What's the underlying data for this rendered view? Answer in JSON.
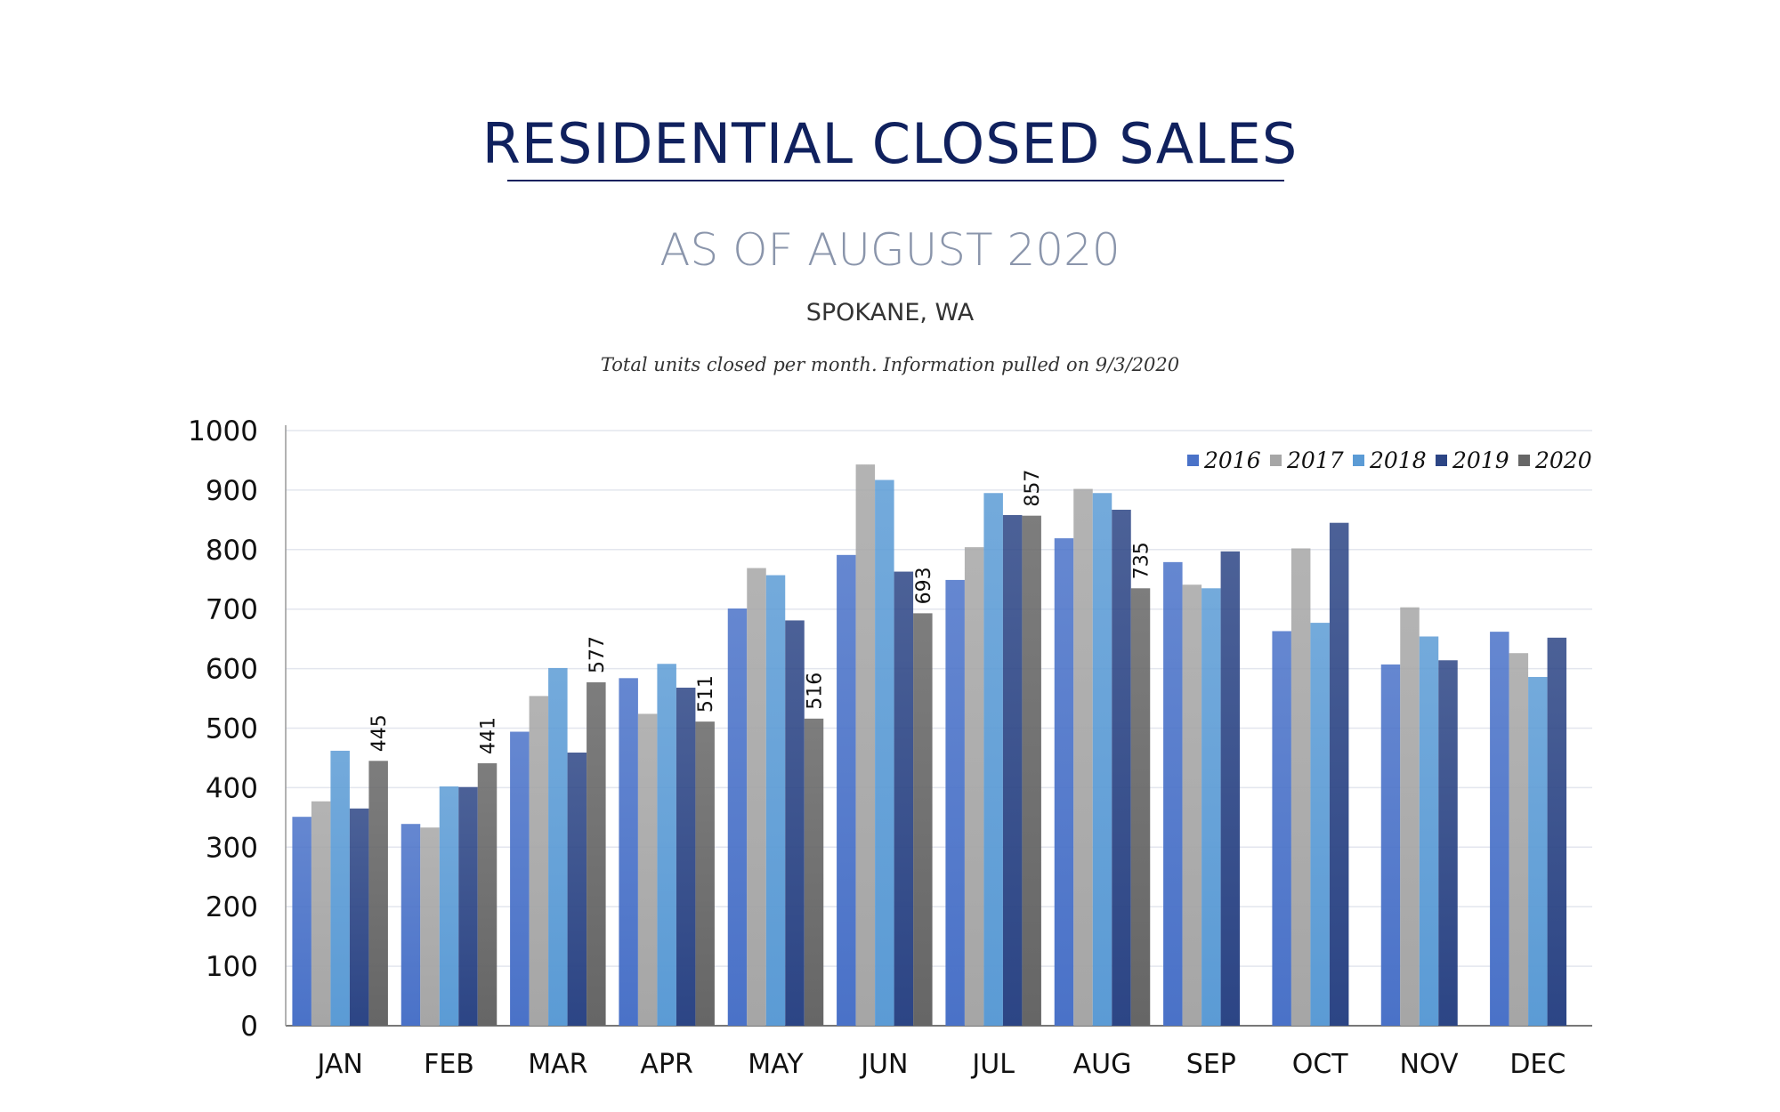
{
  "header": {
    "title": "RESIDENTIAL CLOSED SALES",
    "subtitle": "AS OF AUGUST 2020",
    "location": "SPOKANE, WA",
    "note": "Total units closed per month.  Information pulled on 9/3/2020"
  },
  "chart_data": {
    "type": "bar",
    "title": "RESIDENTIAL CLOSED SALES",
    "xlabel": "",
    "ylabel": "",
    "ylim": [
      0,
      1000
    ],
    "yticks": [
      0,
      100,
      200,
      300,
      400,
      500,
      600,
      700,
      800,
      900,
      1000
    ],
    "grid": true,
    "legend_position": "top-right",
    "categories": [
      "JAN",
      "FEB",
      "MAR",
      "APR",
      "MAY",
      "JUN",
      "JUL",
      "AUG",
      "SEP",
      "OCT",
      "NOV",
      "DEC"
    ],
    "series": [
      {
        "name": "2016",
        "color": "#4a72c8",
        "values": [
          351,
          339,
          494,
          584,
          701,
          791,
          749,
          819,
          779,
          663,
          607,
          662
        ]
      },
      {
        "name": "2017",
        "color": "#a6a6a6",
        "values": [
          377,
          333,
          554,
          524,
          769,
          943,
          804,
          902,
          741,
          802,
          703,
          626
        ]
      },
      {
        "name": "2018",
        "color": "#5b9bd5",
        "values": [
          462,
          402,
          601,
          608,
          757,
          917,
          895,
          895,
          735,
          677,
          654,
          586
        ]
      },
      {
        "name": "2019",
        "color": "#2c4585",
        "values": [
          365,
          401,
          459,
          568,
          681,
          763,
          858,
          867,
          797,
          845,
          614,
          652
        ]
      },
      {
        "name": "2020",
        "color": "#666666",
        "values": [
          445,
          441,
          577,
          511,
          516,
          693,
          857,
          735,
          null,
          null,
          null,
          null
        ],
        "data_labels": true
      }
    ]
  }
}
